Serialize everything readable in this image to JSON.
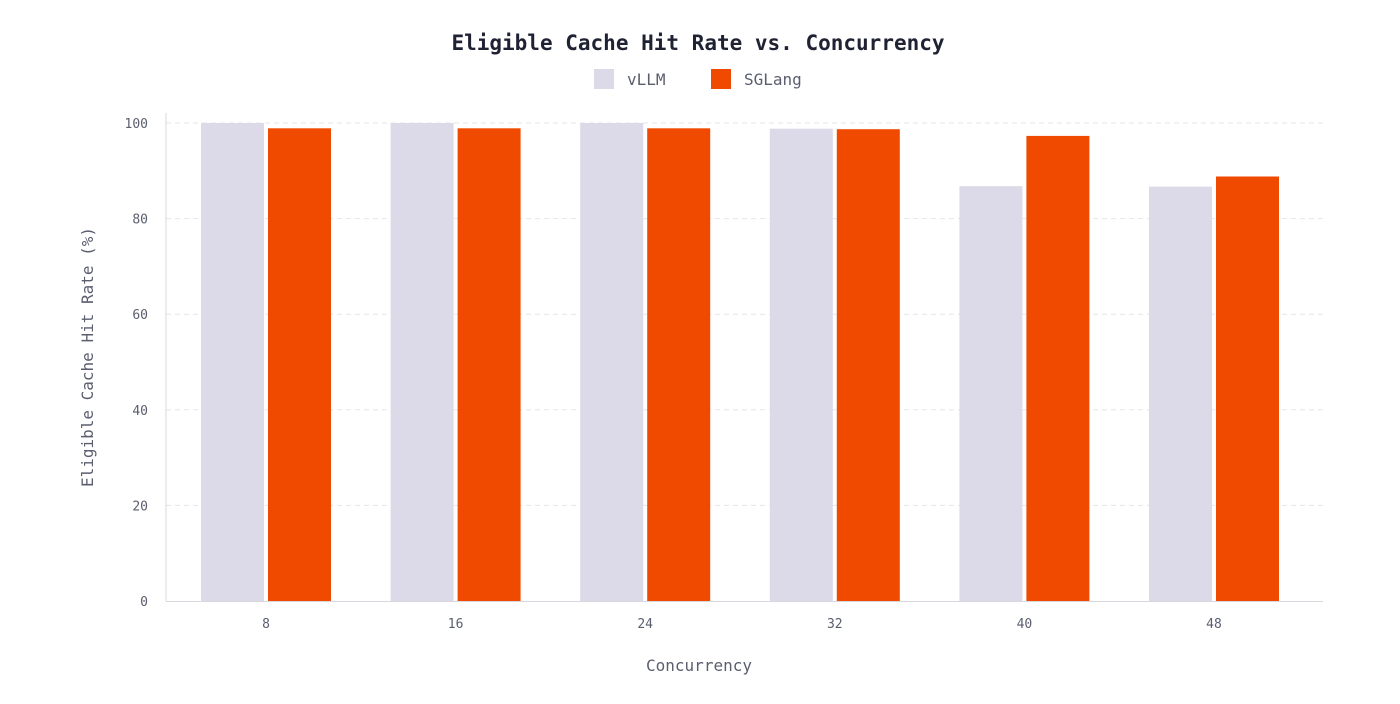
{
  "chart_data": {
    "type": "bar",
    "title": "Eligible Cache Hit Rate vs. Concurrency",
    "xlabel": "Concurrency",
    "ylabel": "Eligible Cache Hit Rate (%)",
    "categories": [
      "8",
      "16",
      "24",
      "32",
      "40",
      "48"
    ],
    "ylim": [
      0,
      100
    ],
    "yticks": [
      0,
      20,
      40,
      60,
      80,
      100
    ],
    "grid": true,
    "legend_position": "top-center",
    "series": [
      {
        "name": "vLLM",
        "color": "#dcdae8",
        "values": [
          100,
          100,
          100,
          98.8,
          86.8,
          86.7
        ]
      },
      {
        "name": "SGLang",
        "color": "#f04a00",
        "values": [
          98.9,
          98.9,
          98.9,
          98.7,
          97.3,
          88.8
        ]
      }
    ]
  }
}
